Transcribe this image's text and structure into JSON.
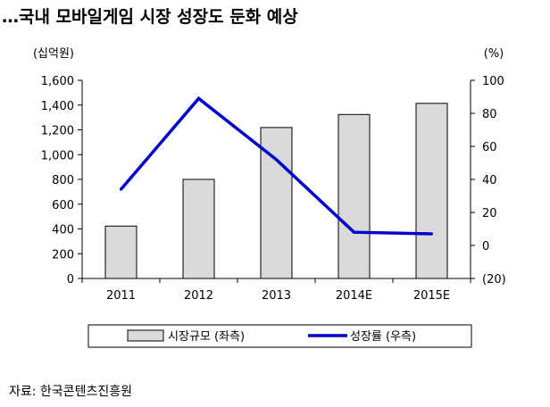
{
  "title": "…국내 모바일게임 시장 성장도 둔화 예상",
  "source": "자료: 한국콘텐츠진흥원",
  "chart_data": {
    "type": "bar",
    "categories": [
      "2011",
      "2012",
      "2013",
      "2014E",
      "2015E"
    ],
    "series": [
      {
        "name": "시장규모 (좌측)",
        "type": "bar",
        "axis": "left",
        "color": "#d9d9d9",
        "values": [
          423,
          800,
          1219,
          1324,
          1414
        ]
      },
      {
        "name": "성장률 (우측)",
        "type": "line",
        "axis": "right",
        "color": "#0000cc",
        "values": [
          34,
          89,
          52,
          8,
          7
        ]
      }
    ],
    "y_left": {
      "unit": "(십억원)",
      "ylim": [
        0,
        1600
      ],
      "ticks": [
        0,
        200,
        400,
        600,
        800,
        1000,
        1200,
        1400,
        1600
      ],
      "tick_labels": [
        "0",
        "200",
        "400",
        "600",
        "800",
        "1,000",
        "1,200",
        "1,400",
        "1,600"
      ]
    },
    "y_right": {
      "unit": "(%)",
      "ylim": [
        -20,
        100
      ],
      "ticks": [
        -20,
        0,
        20,
        40,
        60,
        80,
        100
      ],
      "tick_labels": [
        "(20)",
        "0",
        "20",
        "40",
        "60",
        "80",
        "100"
      ]
    },
    "grid": false,
    "legend_position": "bottom"
  }
}
